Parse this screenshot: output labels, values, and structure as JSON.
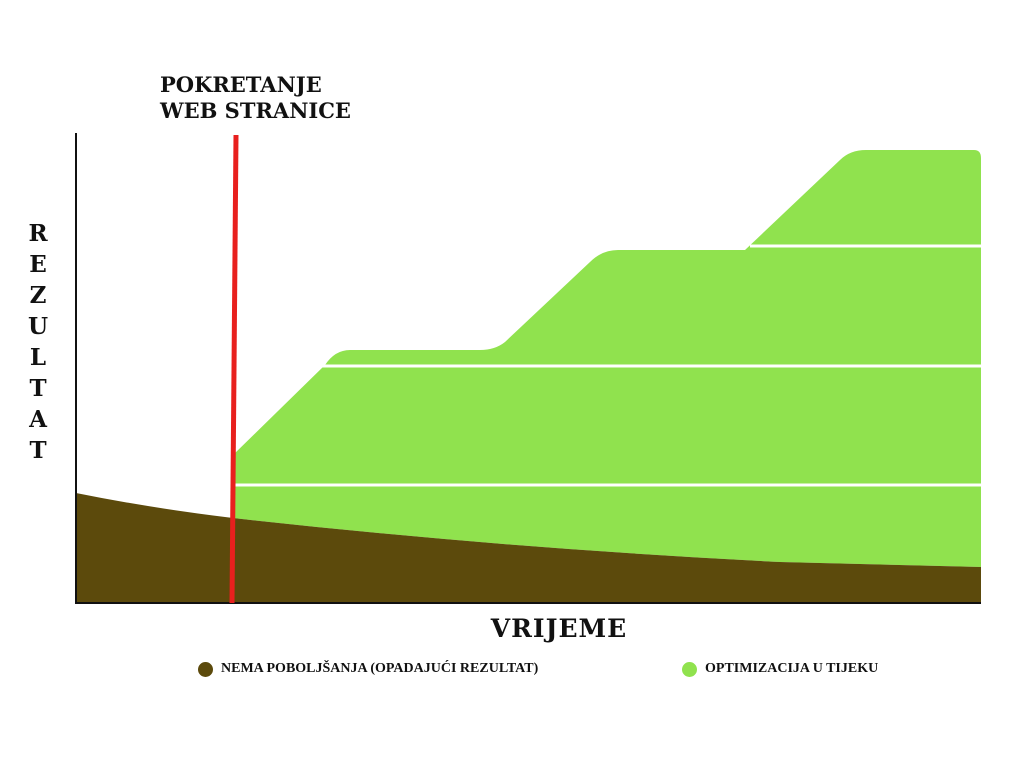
{
  "launch_label": [
    "POKRETANJE",
    "WEB STRANICE"
  ],
  "y_axis_label": "REZULTAT",
  "x_axis_label": "VRIJEME",
  "legend": [
    {
      "label": "NEMA POBOLJŠANJA (OPADAJUĆI REZULTAT)",
      "color": "#5c4a0c"
    },
    {
      "label": "OPTIMIZACIJA U TIJEKU",
      "color": "#90e24e"
    }
  ],
  "colors": {
    "launch_line": "#e8201e",
    "decline_area": "#5c4a0c",
    "growth_area": "#90e24e"
  }
}
